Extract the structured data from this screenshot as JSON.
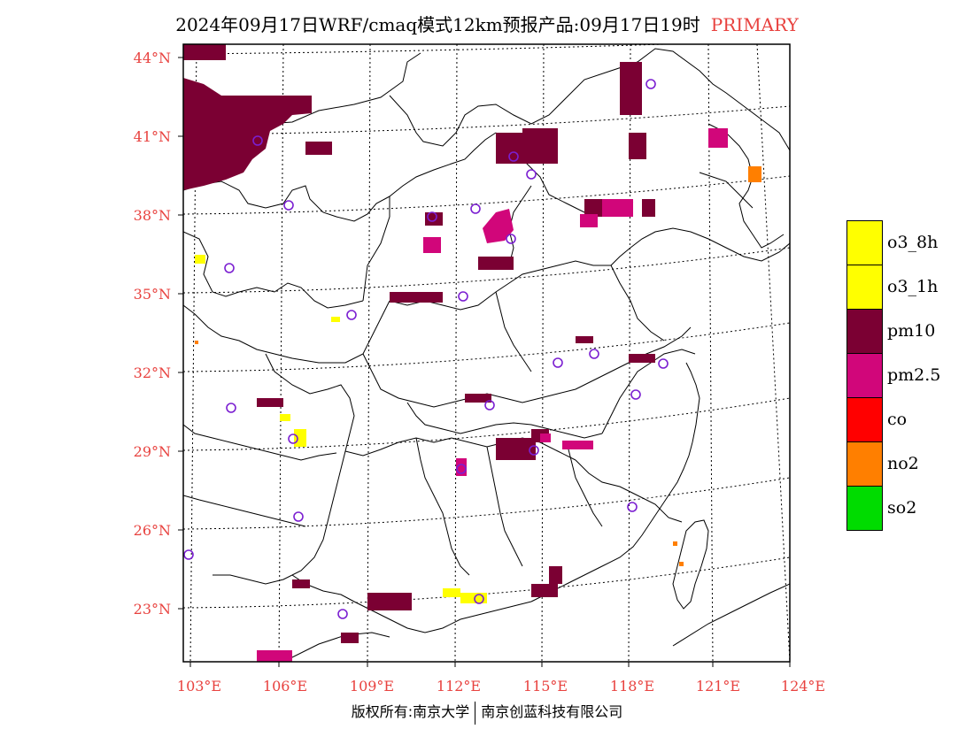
{
  "title": {
    "text": "2024年09月17日WRF/cmaq模式12km预报产品:09月17日19时",
    "tag": "PRIMARY"
  },
  "map": {
    "lat_labels": [
      "44°N",
      "41°N",
      "38°N",
      "35°N",
      "32°N",
      "29°N",
      "26°N",
      "23°N"
    ],
    "lon_labels": [
      "103°E",
      "106°E",
      "109°E",
      "112°E",
      "115°E",
      "118°E",
      "121°E",
      "124°E"
    ],
    "colors": {
      "frame": "#000000",
      "boundary": "#000000",
      "graticule": "#000000",
      "label": "#e8423f",
      "station_marker": "#7b1fd1"
    }
  },
  "legend": {
    "items": [
      {
        "label": "o3_8h",
        "color": "#ffff00"
      },
      {
        "label": "o3_1h",
        "color": "#ffff00"
      },
      {
        "label": "pm10",
        "color": "#7b0033"
      },
      {
        "label": "pm2.5",
        "color": "#d1067a"
      },
      {
        "label": "co",
        "color": "#ff0000"
      },
      {
        "label": "no2",
        "color": "#ff7f00"
      },
      {
        "label": "so2",
        "color": "#00dc00"
      }
    ]
  },
  "footer": {
    "left": "版权所有:南京大学",
    "right": "南京创蓝科技有限公司"
  }
}
